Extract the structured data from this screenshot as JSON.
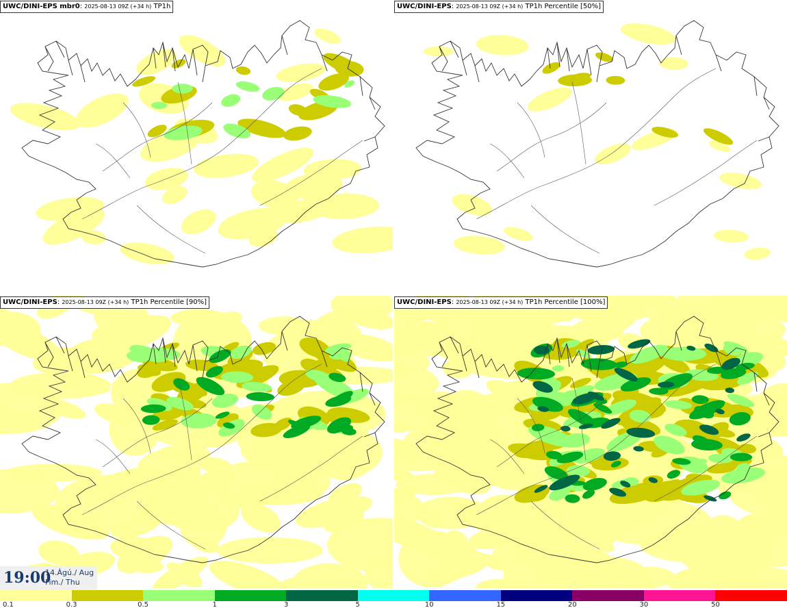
{
  "panels": [
    {
      "model": "UWC/DINI-EPS mbr0",
      "meta": "2025-08-13 09Z (+34 h)",
      "product": "TP1h",
      "coverage": "low"
    },
    {
      "model": "UWC/DINI-EPS",
      "meta": "2025-08-13 09Z (+34 h)",
      "product": "TP1h Percentile [50%]",
      "coverage": "minimal"
    },
    {
      "model": "UWC/DINI-EPS",
      "meta": "2025-08-13 09Z (+34 h)",
      "product": "TP1h Percentile [90%]",
      "coverage": "medium"
    },
    {
      "model": "UWC/DINI-EPS",
      "meta": "2025-08-13 09Z (+34 h)",
      "product": "TP1h Percentile [100%]",
      "coverage": "high"
    }
  ],
  "time": {
    "clock": "19:00",
    "date_line": "14.Ágú./ Aug",
    "day_line": "Fim./ Thu"
  },
  "legend": {
    "colors": [
      "#ffff99",
      "#cccc00",
      "#99ff77",
      "#00aa22",
      "#006644",
      "#00ffee",
      "#3366ff",
      "#000080",
      "#880066",
      "#ff1493",
      "#ff0000"
    ],
    "ticks": [
      "0.1",
      "0.3",
      "0.5",
      "1",
      "3",
      "5",
      "10",
      "15",
      "20",
      "30",
      "50"
    ]
  }
}
